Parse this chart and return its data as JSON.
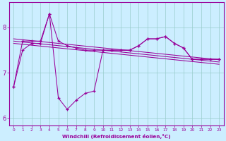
{
  "xlabel": "Windchill (Refroidissement éolien,°C)",
  "x": [
    0,
    1,
    2,
    3,
    4,
    5,
    6,
    7,
    8,
    9,
    10,
    11,
    12,
    13,
    14,
    15,
    16,
    17,
    18,
    19,
    20,
    21,
    22,
    23
  ],
  "y_main": [
    6.7,
    7.7,
    7.7,
    7.7,
    8.3,
    7.7,
    7.6,
    7.55,
    7.5,
    7.5,
    7.5,
    7.5,
    7.5,
    7.5,
    7.6,
    7.75,
    7.75,
    7.8,
    7.65,
    7.55,
    7.3,
    7.3,
    7.3,
    7.3
  ],
  "y_low": [
    6.7,
    7.5,
    7.65,
    7.65,
    8.3,
    6.45,
    6.2,
    6.4,
    6.55,
    6.6,
    7.5,
    7.5,
    7.5,
    7.5,
    7.6,
    7.75,
    7.75,
    7.8,
    7.65,
    7.55,
    7.3,
    7.3,
    7.3,
    7.3
  ],
  "y_t1": [
    7.75,
    7.73,
    7.71,
    7.69,
    7.67,
    7.65,
    7.63,
    7.61,
    7.59,
    7.57,
    7.55,
    7.53,
    7.51,
    7.49,
    7.47,
    7.45,
    7.43,
    7.41,
    7.39,
    7.37,
    7.35,
    7.33,
    7.31,
    7.29
  ],
  "y_t2": [
    7.7,
    7.68,
    7.66,
    7.64,
    7.62,
    7.6,
    7.58,
    7.56,
    7.54,
    7.52,
    7.5,
    7.48,
    7.46,
    7.44,
    7.42,
    7.4,
    7.38,
    7.36,
    7.34,
    7.32,
    7.3,
    7.28,
    7.26,
    7.24
  ],
  "y_t3": [
    7.65,
    7.63,
    7.61,
    7.59,
    7.57,
    7.55,
    7.53,
    7.51,
    7.49,
    7.47,
    7.45,
    7.43,
    7.41,
    7.39,
    7.37,
    7.35,
    7.33,
    7.31,
    7.29,
    7.27,
    7.25,
    7.23,
    7.21,
    7.19
  ],
  "bg_color": "#cceeff",
  "grid_color": "#99cccc",
  "line_color": "#990099",
  "ylim": [
    5.85,
    8.55
  ],
  "yticks": [
    6,
    7,
    8
  ],
  "xlim": [
    -0.5,
    23.5
  ],
  "xtick_fontsize": 4.2,
  "ytick_fontsize": 6.0
}
